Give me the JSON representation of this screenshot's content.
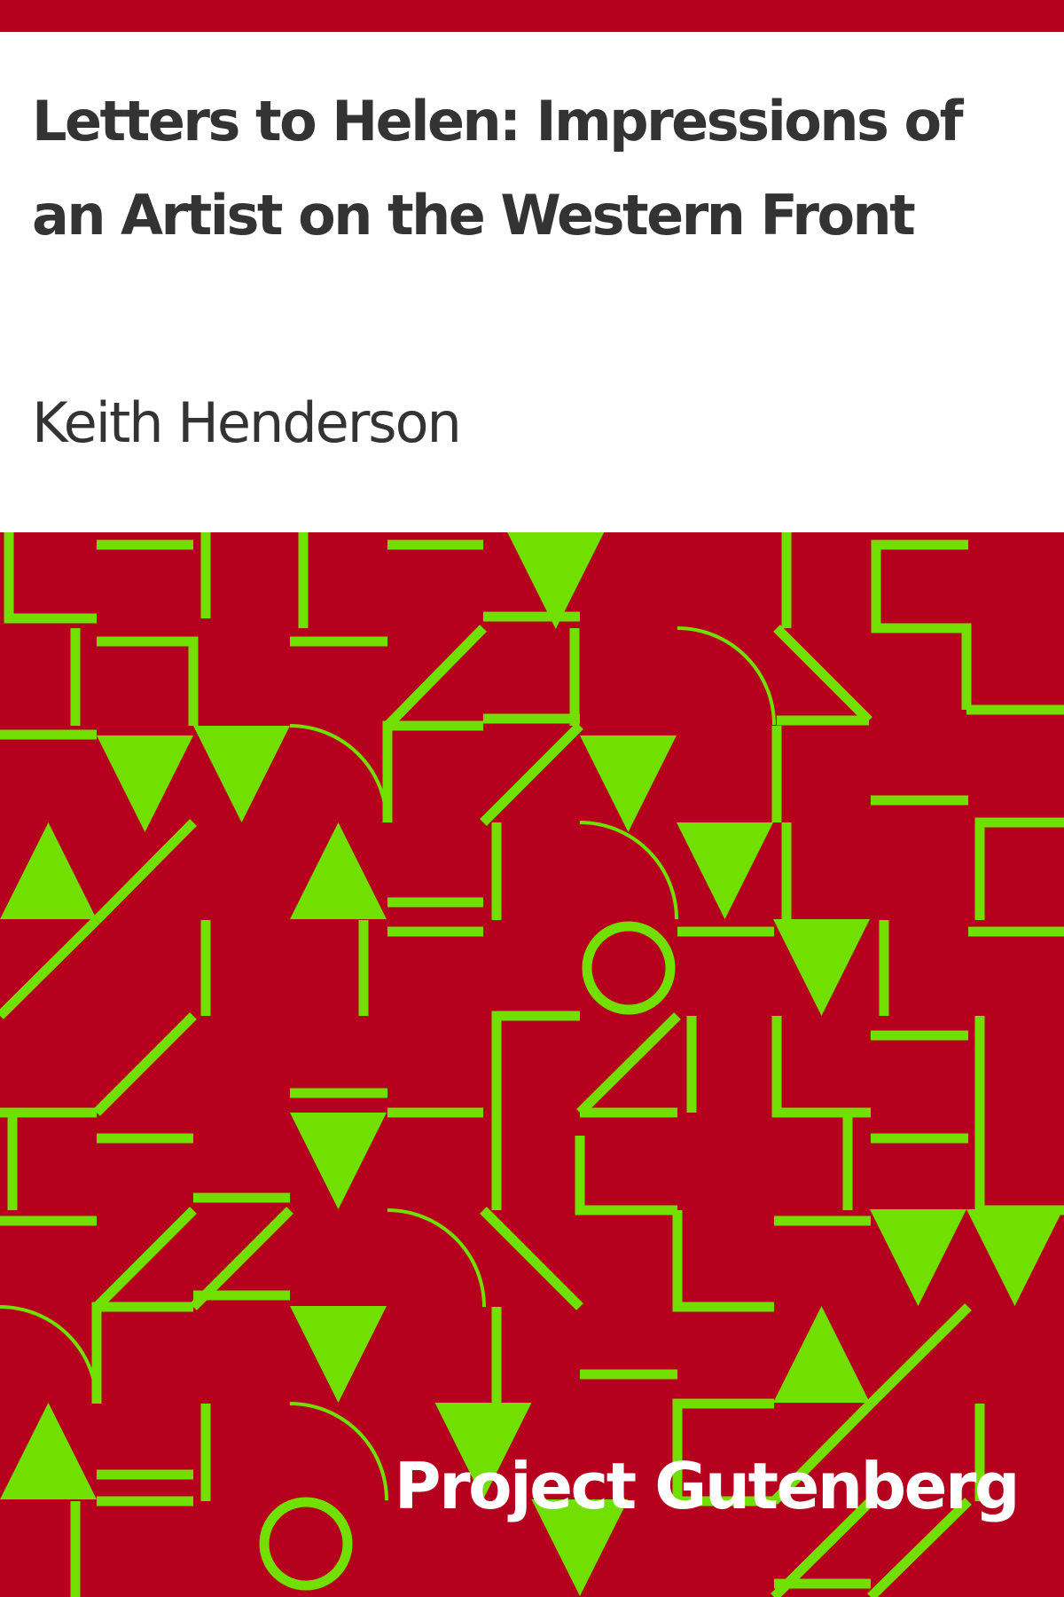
{
  "cover": {
    "title": "Letters to Helen: Impressions of an Artist on the Western Front",
    "author": "Keith Henderson",
    "publisher_logo": "Project Gutenberg"
  },
  "colors": {
    "band": "#B5001E",
    "pattern_background": "#B5001E",
    "pattern_shapes": "#71E000",
    "title_text": "#333333",
    "logo_text": "#FFFFFF",
    "page_background": "#FFFFFF"
  },
  "pattern": {
    "shape_kinds": [
      "triangle-down",
      "triangle-up",
      "circle",
      "arc",
      "line",
      "corner",
      "diagonal",
      "double-line"
    ]
  }
}
